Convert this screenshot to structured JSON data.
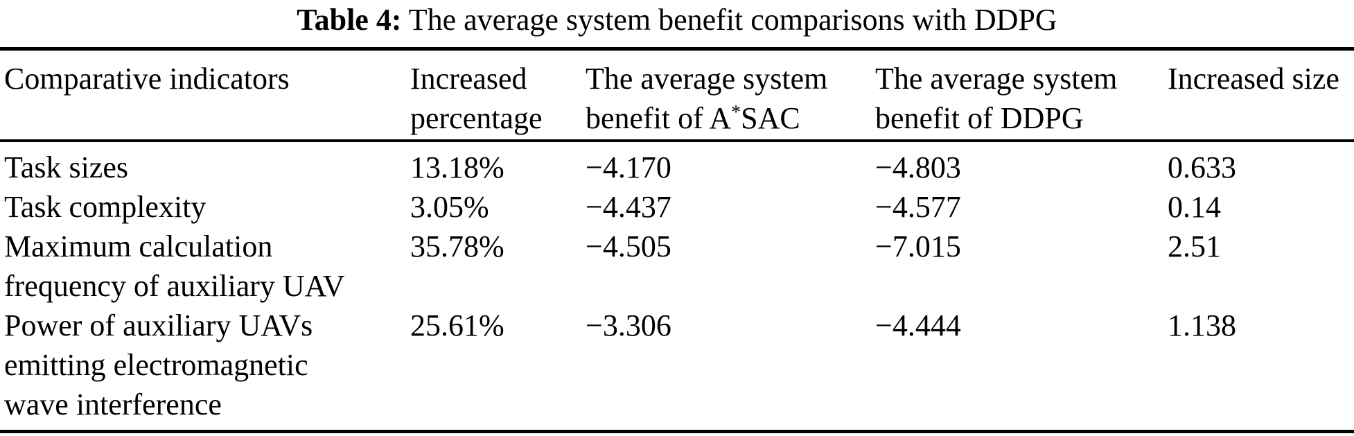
{
  "caption": {
    "label": "Table 4:",
    "text": "The average system benefit comparisons with DDPG"
  },
  "table": {
    "columns": [
      {
        "lines": [
          "Comparative indicators"
        ]
      },
      {
        "lines": [
          "Increased",
          "percentage"
        ]
      },
      {
        "line1": "The average system",
        "line2_pre": "benefit of A",
        "line2_sup": "*",
        "line2_post": "SAC"
      },
      {
        "lines": [
          "The average system",
          "benefit of DDPG"
        ]
      },
      {
        "lines": [
          "Increased size"
        ]
      }
    ],
    "rows": [
      {
        "indicator_lines": [
          "Task sizes"
        ],
        "increased_percentage": "13.18%",
        "benefit_asac": "−4.170",
        "benefit_ddpg": "−4.803",
        "increased_size": "0.633"
      },
      {
        "indicator_lines": [
          "Task complexity"
        ],
        "increased_percentage": "3.05%",
        "benefit_asac": "−4.437",
        "benefit_ddpg": "−4.577",
        "increased_size": "0.14"
      },
      {
        "indicator_lines": [
          "Maximum calculation",
          "frequency of auxiliary UAV"
        ],
        "increased_percentage": "35.78%",
        "benefit_asac": "−4.505",
        "benefit_ddpg": "−7.015",
        "increased_size": "2.51"
      },
      {
        "indicator_lines": [
          "Power of auxiliary UAVs",
          "emitting electromagnetic",
          "wave interference"
        ],
        "increased_percentage": "25.61%",
        "benefit_asac": "−3.306",
        "benefit_ddpg": "−4.444",
        "increased_size": "1.138"
      }
    ]
  }
}
